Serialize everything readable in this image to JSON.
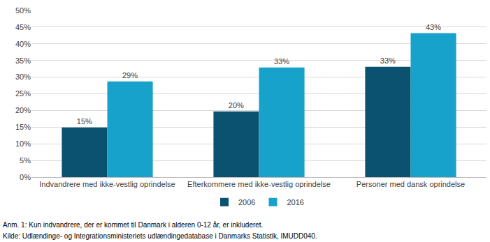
{
  "chart_data": {
    "type": "bar",
    "categories": [
      "Indvandrere med ikke-vestlig oprindelse",
      "Efterkommere med ikke-vestlig oprindelse",
      "Personer med dansk oprindelse"
    ],
    "series": [
      {
        "name": "2006",
        "color": "#0b5170",
        "values": [
          14.9,
          19.7,
          33.1
        ],
        "value_labels": [
          "15%",
          "20%",
          "33%"
        ]
      },
      {
        "name": "2016",
        "color": "#17a2cb",
        "values": [
          28.7,
          32.9,
          43.2
        ],
        "value_labels": [
          "29%",
          "33%",
          "43%"
        ]
      }
    ],
    "ylim": [
      0,
      50
    ],
    "yticks": [
      {
        "value": 0,
        "label": "0%"
      },
      {
        "value": 5,
        "label": "5%"
      },
      {
        "value": 10,
        "label": "10%"
      },
      {
        "value": 15,
        "label": "15%"
      },
      {
        "value": 20,
        "label": "20%"
      },
      {
        "value": 25,
        "label": "25%"
      },
      {
        "value": 30,
        "label": "30%"
      },
      {
        "value": 35,
        "label": "35%"
      },
      {
        "value": 40,
        "label": "40%"
      },
      {
        "value": 45,
        "label": "45%"
      },
      {
        "value": 50,
        "label": "50%"
      }
    ],
    "grid": true,
    "legend": "bottom",
    "data_labels": true,
    "annotations": [
      "Anm. 1: Kun indvandrere, der er kommet til Danmark i alderen 0-12 år, er inkluderet.",
      "Kilde: Udlændinge- og Integrationsministeriets udlændingedatabase i Danmarks Statistik, IMUDD040."
    ]
  }
}
